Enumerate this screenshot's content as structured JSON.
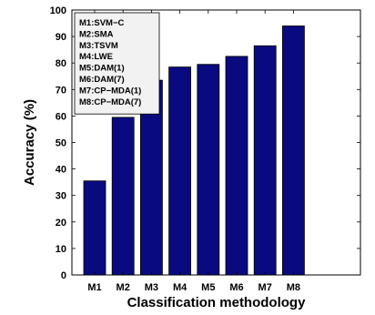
{
  "chart_data": {
    "type": "bar",
    "categories": [
      "M1",
      "M2",
      "M3",
      "M4",
      "M5",
      "M6",
      "M7",
      "M8"
    ],
    "values": [
      35.5,
      59.5,
      73.5,
      78.5,
      79.5,
      82.5,
      86.5,
      94
    ],
    "xlabel": "Classification methodology",
    "ylabel": "Accuracy (%)",
    "ylim": [
      0,
      100
    ],
    "yticks": [
      0,
      10,
      20,
      30,
      40,
      50,
      60,
      70,
      80,
      90,
      100
    ],
    "grid": false,
    "bar_color": "#0a0a80",
    "legend_position": "top-left",
    "legend_entries": [
      "M1:SVM−C",
      "M2:SMA",
      "M3:TSVM",
      "M4:LWE",
      "M5:DAM(1)",
      "M6:DAM(7)",
      "M7:CP−MDA(1)",
      "M8:CP−MDA(7)"
    ]
  }
}
